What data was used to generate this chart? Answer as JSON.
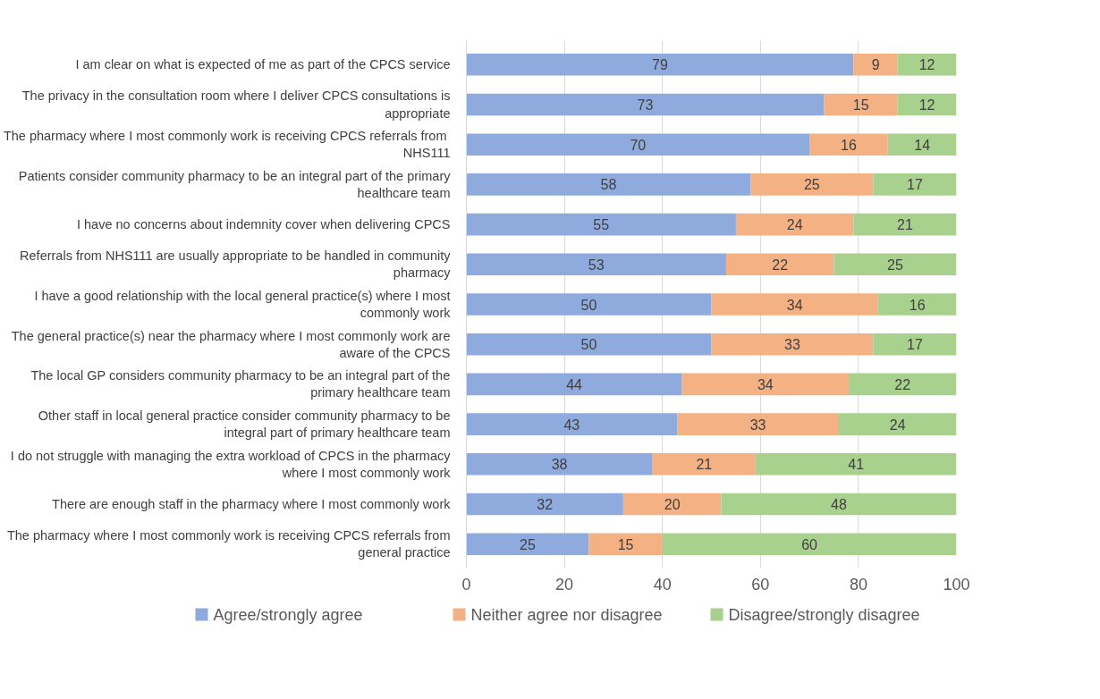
{
  "chart_data": {
    "type": "bar",
    "orientation": "horizontal",
    "stacked": true,
    "data_labels": true,
    "grid": "x",
    "legend": "bottom",
    "categories": [
      "I am clear on what is expected of me as part of the CPCS service",
      "The privacy in the consultation room where I deliver CPCS consultations is appropriate",
      "The pharmacy where I most commonly work is  receiving CPCS referrals from NHS111",
      "Patients consider community pharmacy to be an integral part of the primary healthcare team",
      "I have no concerns about indemnity cover when delivering CPCS",
      "Referrals from NHS111 are usually appropriate to be handled in community pharmacy",
      "I have a good relationship with the local general practice(s) where I most commonly work",
      "The general practice(s) near the pharmacy where I most commonly work are aware of the CPCS",
      "The local GP considers community pharmacy to be an integral part of the primary healthcare team",
      "Other staff in local general practice consider community pharmacy to be integral part of primary healthcare team",
      "I do not struggle with managing the extra workload of CPCS in the pharmacy where I most commonly work",
      "There are enough staff in the pharmacy where I most commonly work",
      "The pharmacy where I most commonly work is receiving CPCS referrals from general practice"
    ],
    "series": [
      {
        "name": "Agree/strongly agree",
        "color": "#8faadc",
        "values": [
          79,
          73,
          70,
          58,
          55,
          53,
          50,
          50,
          44,
          43,
          38,
          32,
          25
        ]
      },
      {
        "name": "Neither agree nor disagree",
        "color": "#f4b183",
        "values": [
          9,
          15,
          16,
          25,
          24,
          22,
          34,
          33,
          34,
          33,
          21,
          20,
          15
        ]
      },
      {
        "name": "Disagree/strongly disagree",
        "color": "#a9d18e",
        "values": [
          12,
          12,
          14,
          17,
          21,
          25,
          16,
          17,
          22,
          24,
          41,
          48,
          60
        ]
      }
    ],
    "xlim": [
      0,
      100
    ],
    "xticks": [
      0,
      20,
      40,
      60,
      80,
      100
    ]
  }
}
